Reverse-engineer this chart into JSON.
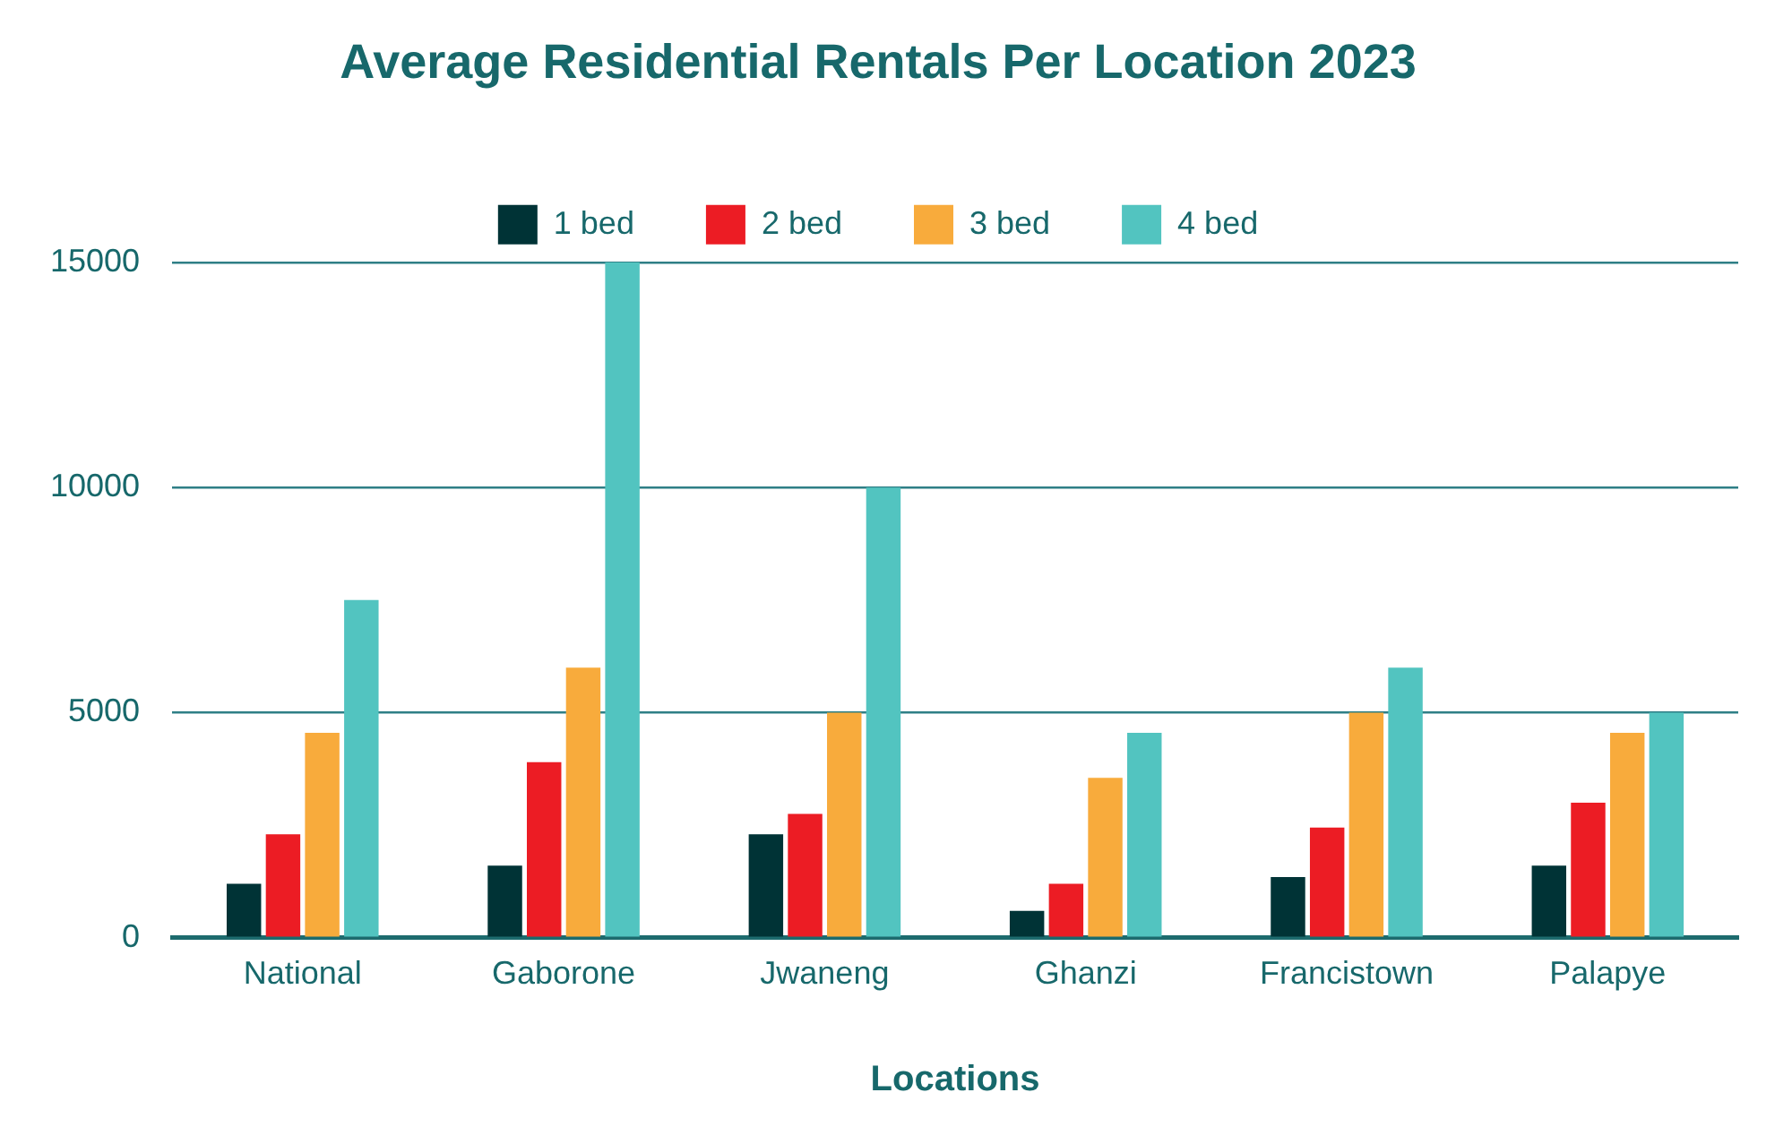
{
  "chart_data": {
    "type": "bar",
    "title": "Average Residential Rentals Per Location 2023",
    "xlabel": "Locations",
    "categories": [
      "National",
      "Gaborone",
      "Jwaneng",
      "Ghanzi",
      "Francistown",
      "Palapye"
    ],
    "series": [
      {
        "name": "1 bed",
        "color": "#003336",
        "values": [
          1200,
          1600,
          2300,
          600,
          1350,
          1600
        ]
      },
      {
        "name": "2 bed",
        "color": "#ec1c24",
        "values": [
          2300,
          3900,
          2750,
          1200,
          2450,
          3000
        ]
      },
      {
        "name": "3 bed",
        "color": "#f8ab3c",
        "values": [
          4550,
          6000,
          5000,
          3550,
          5000,
          4550
        ]
      },
      {
        "name": "4 bed",
        "color": "#52c4c0",
        "values": [
          7500,
          15000,
          10000,
          4550,
          6000,
          5000
        ]
      }
    ],
    "ylim": [
      0,
      15000
    ],
    "yticks": [
      0,
      5000,
      10000,
      15000
    ],
    "grid": "y",
    "legend": "top"
  }
}
